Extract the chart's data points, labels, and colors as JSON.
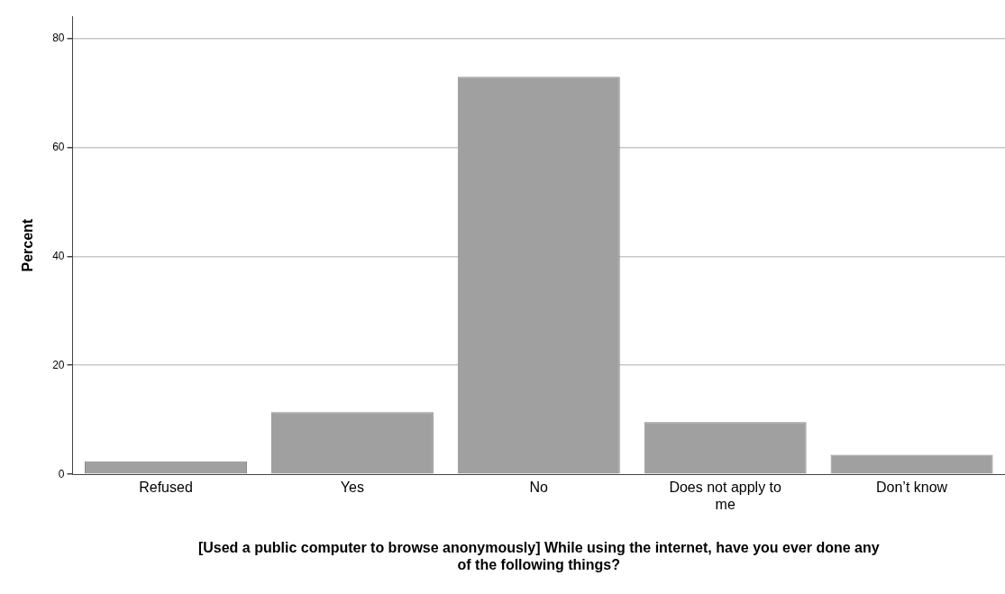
{
  "chart_data": {
    "type": "bar",
    "xlabel": "[Used a public computer to browse anonymously] While using the internet, have you ever done any of the following things?",
    "ylabel": "Percent",
    "categories": [
      "Refused",
      "Yes",
      "No",
      "Does not apply to me",
      "Don’t know"
    ],
    "values": [
      2.4,
      11.4,
      72.9,
      9.6,
      3.6
    ],
    "color": "#a0a0a0",
    "ylim": [
      0,
      84
    ],
    "yticks": [
      0,
      20,
      40,
      60,
      80
    ],
    "grid": "y",
    "legend": false
  }
}
